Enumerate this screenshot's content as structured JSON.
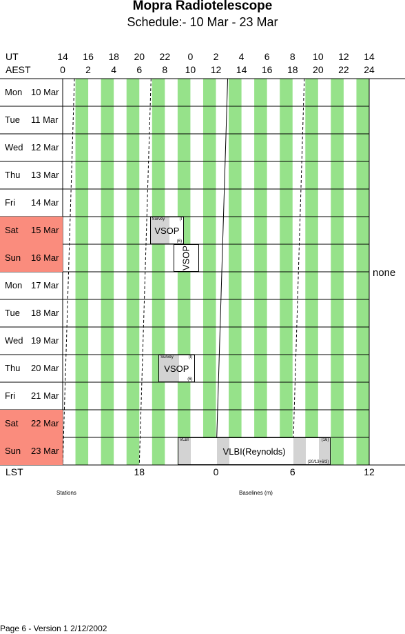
{
  "title": "Mopra Radiotelescope",
  "subtitle": "Schedule:- 10 Mar - 23 Mar",
  "header": {
    "ut_label": "UT",
    "aest_label": "AEST",
    "ut_ticks": [
      "14",
      "16",
      "18",
      "20",
      "22",
      "0",
      "2",
      "4",
      "6",
      "8",
      "10",
      "12",
      "14"
    ],
    "aest_ticks": [
      "0",
      "2",
      "4",
      "6",
      "8",
      "10",
      "12",
      "14",
      "16",
      "18",
      "20",
      "22",
      "24"
    ]
  },
  "days": [
    {
      "name": "Mon",
      "date": "10 Mar",
      "weekend": false
    },
    {
      "name": "Tue",
      "date": "11 Mar",
      "weekend": false
    },
    {
      "name": "Wed",
      "date": "12 Mar",
      "weekend": false
    },
    {
      "name": "Thu",
      "date": "13 Mar",
      "weekend": false
    },
    {
      "name": "Fri",
      "date": "14 Mar",
      "weekend": false
    },
    {
      "name": "Sat",
      "date": "15 Mar",
      "weekend": true
    },
    {
      "name": "Sun",
      "date": "16 Mar",
      "weekend": true
    },
    {
      "name": "Mon",
      "date": "17 Mar",
      "weekend": false
    },
    {
      "name": "Tue",
      "date": "18 Mar",
      "weekend": false
    },
    {
      "name": "Wed",
      "date": "19 Mar",
      "weekend": false
    },
    {
      "name": "Thu",
      "date": "20 Mar",
      "weekend": false
    },
    {
      "name": "Fri",
      "date": "21 Mar",
      "weekend": false
    },
    {
      "name": "Sat",
      "date": "22 Mar",
      "weekend": true
    },
    {
      "name": "Sun",
      "date": "23 Mar",
      "weekend": true
    }
  ],
  "side_label": "none",
  "blocks": [
    {
      "row": 5,
      "start_aest": 6.83,
      "end_aest": 9.5,
      "label": "VSOP",
      "top_left": "Survey",
      "top_right": "(I",
      "bottom_right": "(6)",
      "vertical": false
    },
    {
      "row": 6,
      "start_aest": 8.67,
      "end_aest": 10.67,
      "label": "VSOP",
      "top_left": "",
      "top_right": "",
      "bottom_right": "",
      "vertical": true
    },
    {
      "row": 10,
      "start_aest": 7.5,
      "end_aest": 10.33,
      "label": "VSOP",
      "top_left": "Survey",
      "top_right": "(I)",
      "bottom_right": "(6)",
      "vertical": false
    },
    {
      "row": 13,
      "start_aest": 9.0,
      "end_aest": 21.0,
      "label": "VLBI(Reynolds)",
      "top_left": "VLBI",
      "top_right": "(16)",
      "bottom_right": "(20/13+6/3)",
      "vertical": false
    }
  ],
  "lst": {
    "label": "LST",
    "ticks": [
      {
        "label": "18",
        "aest": 6
      },
      {
        "label": "0",
        "aest": 12
      },
      {
        "label": "6",
        "aest": 18
      },
      {
        "label": "12",
        "aest": 24
      }
    ]
  },
  "stations_label": "Stations",
  "baselines_label": "Baselines (m)",
  "footer": "Page 6 - Version 1  2/12/2002",
  "colors": {
    "night_band": "#96e28a",
    "weekend": "#fa8c7d",
    "block_fill": "#d3d3d3"
  }
}
